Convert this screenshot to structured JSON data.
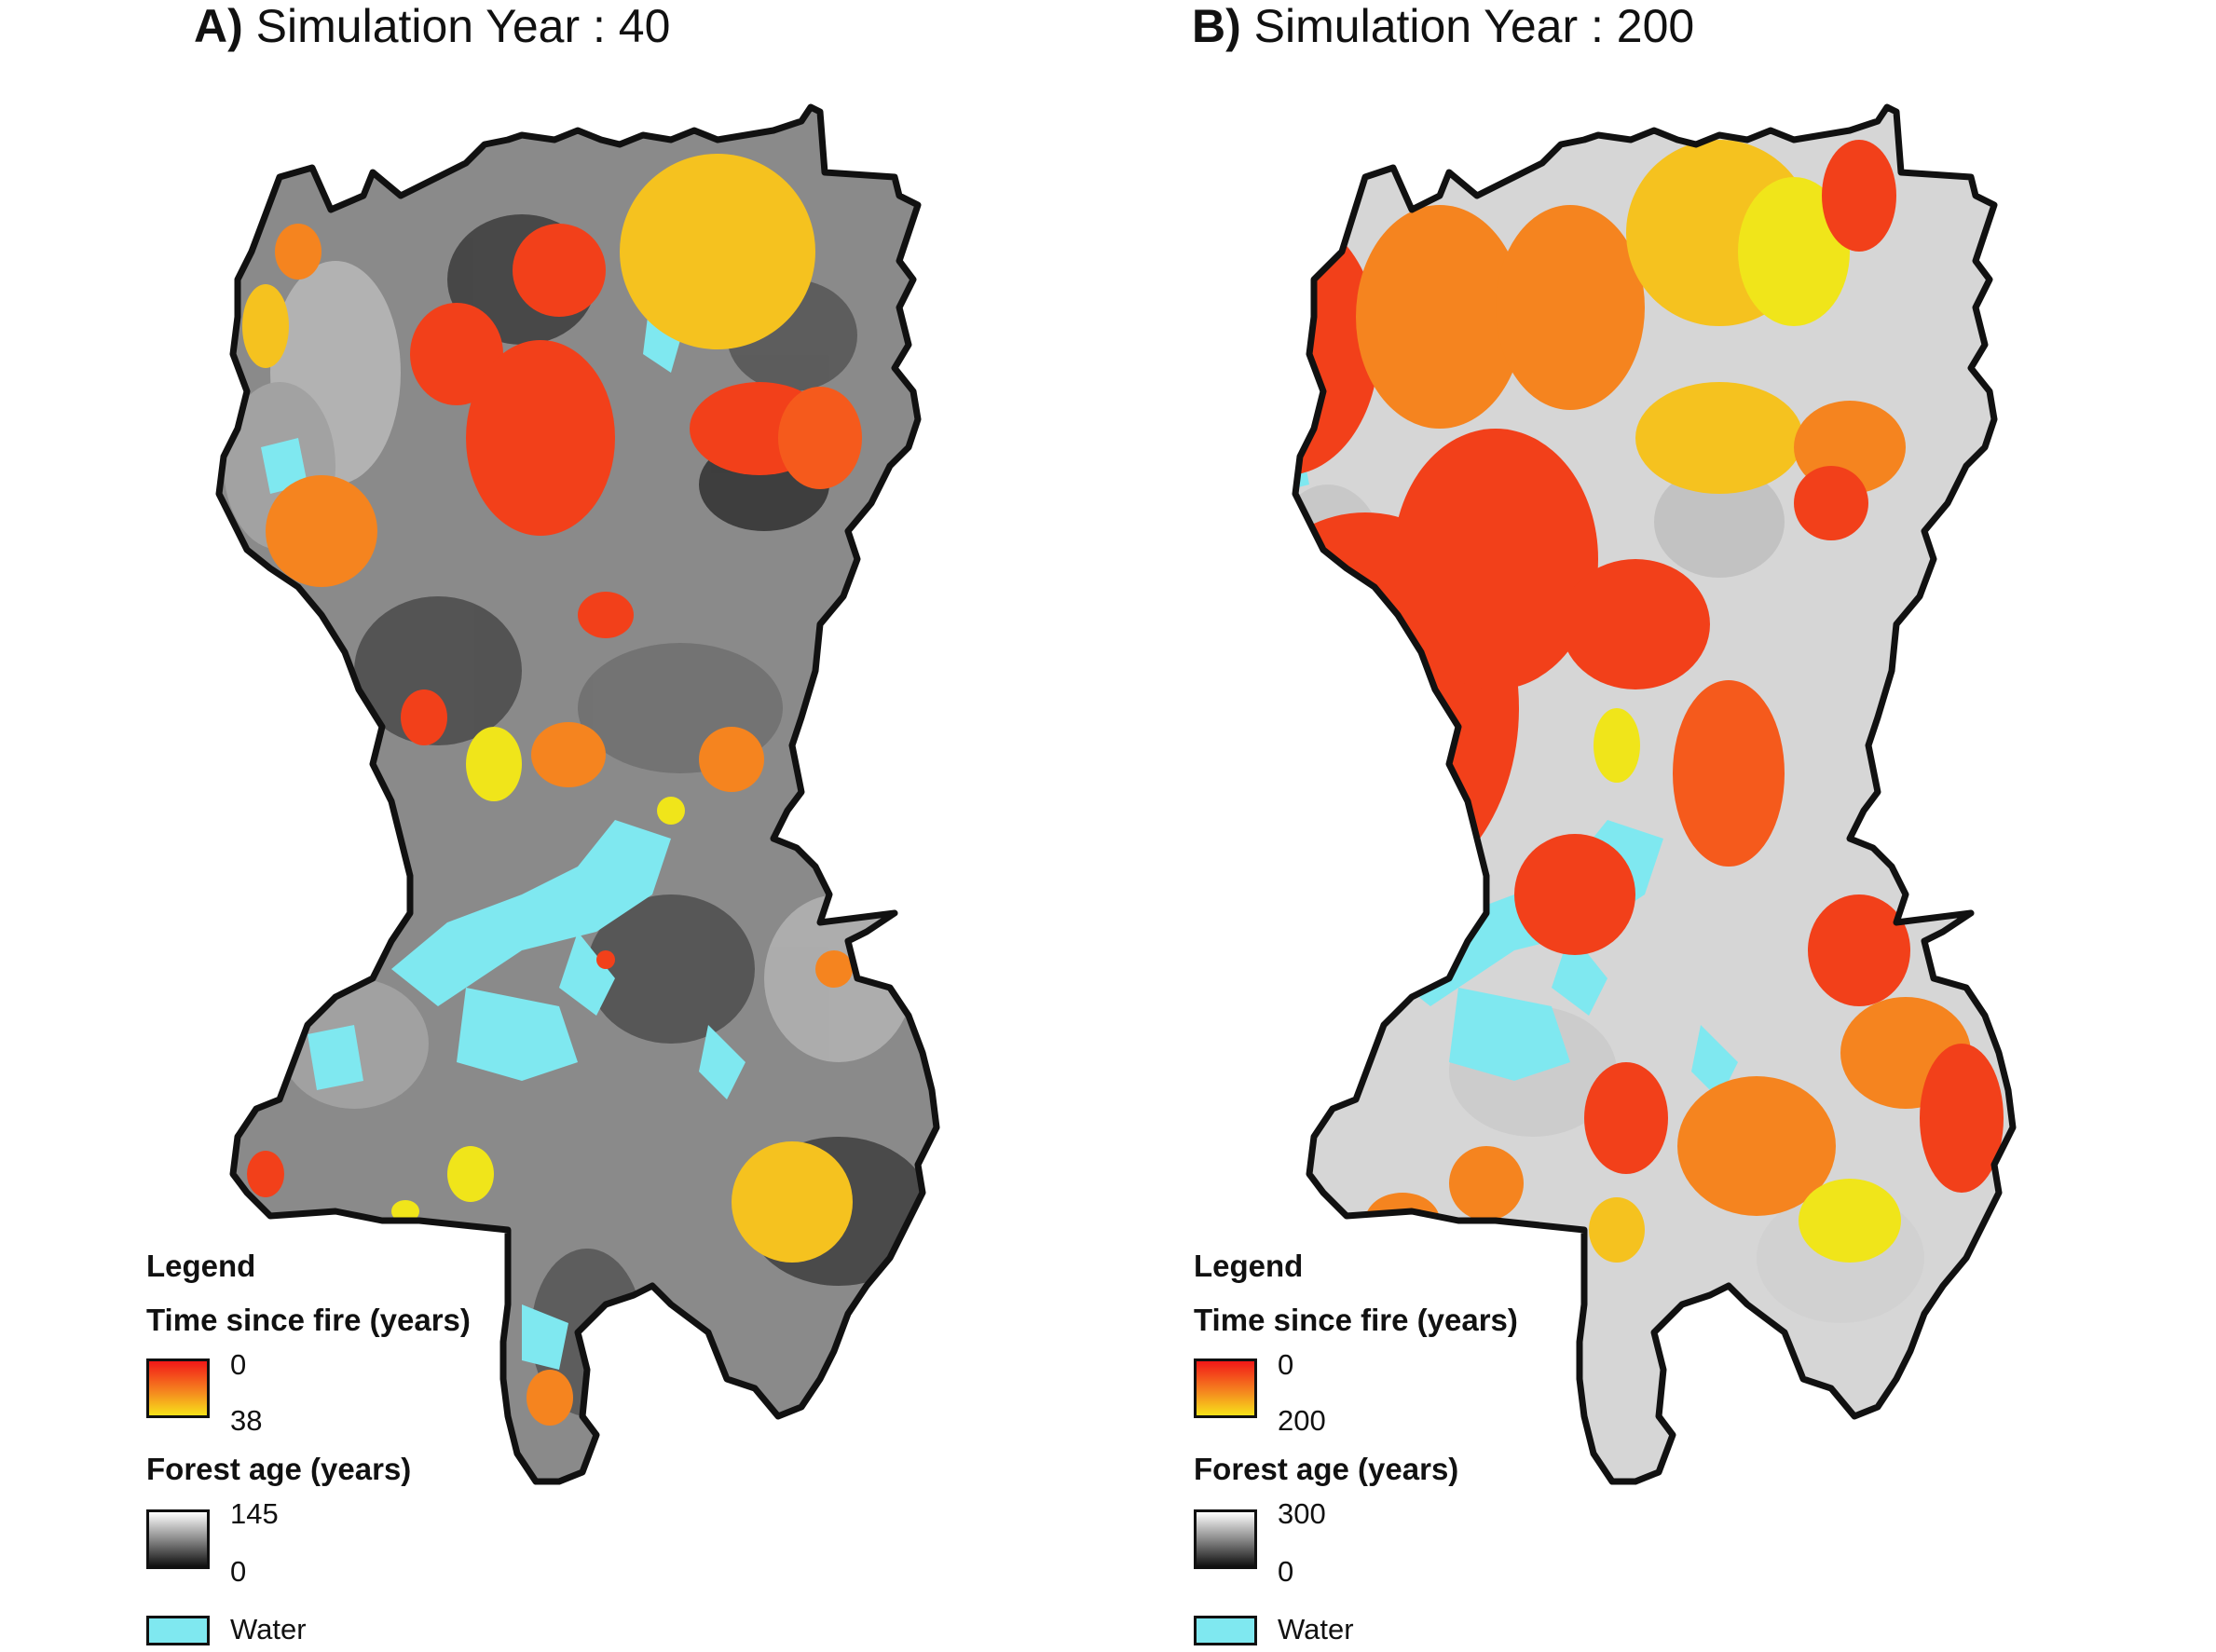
{
  "panels": [
    {
      "letter": "A)",
      "title": "Simulation Year : 40",
      "legend": {
        "heading": "Legend",
        "fire_title": "Time since fire (years)",
        "fire_min": "0",
        "fire_max": "38",
        "age_title": "Forest age (years)",
        "age_max": "145",
        "age_min": "0",
        "water_label": "Water"
      },
      "colors": {
        "landscape": "#8a8a8a",
        "recent_fire": "#f2401a",
        "mid_fire": "#f5841f",
        "old_fire": "#f5c21f",
        "youngest": "#f0e51a",
        "water": "#7fe8f0"
      }
    },
    {
      "letter": "B)",
      "title": "Simulation Year : 200",
      "legend": {
        "heading": "Legend",
        "fire_title": "Time since fire (years)",
        "fire_min": "0",
        "fire_max": "200",
        "age_title": "Forest age (years)",
        "age_max": "300",
        "age_min": "0",
        "water_label": "Water"
      },
      "colors": {
        "landscape": "#d6d6d6",
        "recent_fire": "#f2401a",
        "mid_fire": "#f5841f",
        "old_fire": "#f5c21f",
        "youngest": "#f0e51a",
        "water": "#7fe8f0"
      }
    }
  ]
}
